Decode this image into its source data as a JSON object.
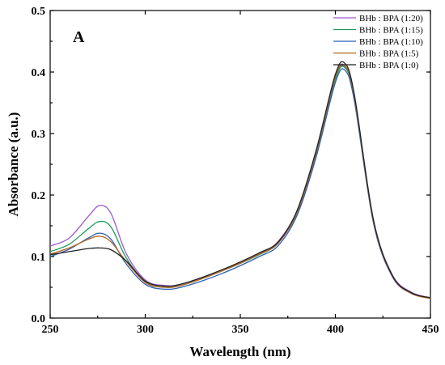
{
  "chart_data": {
    "type": "line",
    "panel_label": "A",
    "xlabel": "Wavelength (nm)",
    "ylabel": "Absorbance (a.u.)",
    "xlim": [
      250,
      450
    ],
    "ylim": [
      0.0,
      0.5
    ],
    "xticks": [
      250,
      300,
      350,
      400,
      450
    ],
    "yticks": [
      0.0,
      0.1,
      0.2,
      0.3,
      0.4,
      0.5
    ],
    "xtick_labels": [
      "250",
      "300",
      "350",
      "400",
      "450"
    ],
    "ytick_labels": [
      "0.0",
      "0.1",
      "0.2",
      "0.3",
      "0.4",
      "0.5"
    ],
    "grid": false,
    "legend_position": "top-right",
    "x": [
      250,
      260,
      270,
      276,
      282,
      290,
      300,
      310,
      320,
      340,
      360,
      370,
      380,
      390,
      400,
      405,
      410,
      420,
      430,
      440,
      450
    ],
    "series": [
      {
        "name": "BHb : BPA (1:20)",
        "color": "#9b59d0",
        "values": [
          0.117,
          0.13,
          0.165,
          0.183,
          0.17,
          0.105,
          0.062,
          0.053,
          0.056,
          0.078,
          0.105,
          0.125,
          0.175,
          0.27,
          0.39,
          0.408,
          0.36,
          0.16,
          0.07,
          0.042,
          0.033
        ]
      },
      {
        "name": "BHb : BPA (1:15)",
        "color": "#1e9c5a",
        "values": [
          0.108,
          0.12,
          0.145,
          0.157,
          0.148,
          0.098,
          0.058,
          0.05,
          0.054,
          0.076,
          0.103,
          0.122,
          0.172,
          0.268,
          0.388,
          0.407,
          0.358,
          0.158,
          0.068,
          0.041,
          0.032
        ]
      },
      {
        "name": "BHb : BPA (1:10)",
        "color": "#2a5fb8",
        "values": [
          0.1,
          0.112,
          0.13,
          0.138,
          0.128,
          0.088,
          0.055,
          0.047,
          0.051,
          0.072,
          0.1,
          0.118,
          0.168,
          0.263,
          0.383,
          0.403,
          0.353,
          0.155,
          0.067,
          0.04,
          0.032
        ]
      },
      {
        "name": "BHb : BPA (1:5)",
        "color": "#b5651d",
        "values": [
          0.104,
          0.114,
          0.128,
          0.133,
          0.124,
          0.092,
          0.058,
          0.05,
          0.054,
          0.076,
          0.104,
          0.122,
          0.173,
          0.27,
          0.392,
          0.41,
          0.36,
          0.158,
          0.068,
          0.04,
          0.032
        ]
      },
      {
        "name": "BHb : BPA (1:0)",
        "color": "#222222",
        "values": [
          0.103,
          0.108,
          0.113,
          0.114,
          0.111,
          0.093,
          0.06,
          0.052,
          0.056,
          0.078,
          0.106,
          0.124,
          0.176,
          0.274,
          0.396,
          0.414,
          0.363,
          0.16,
          0.069,
          0.041,
          0.033
        ]
      }
    ]
  }
}
